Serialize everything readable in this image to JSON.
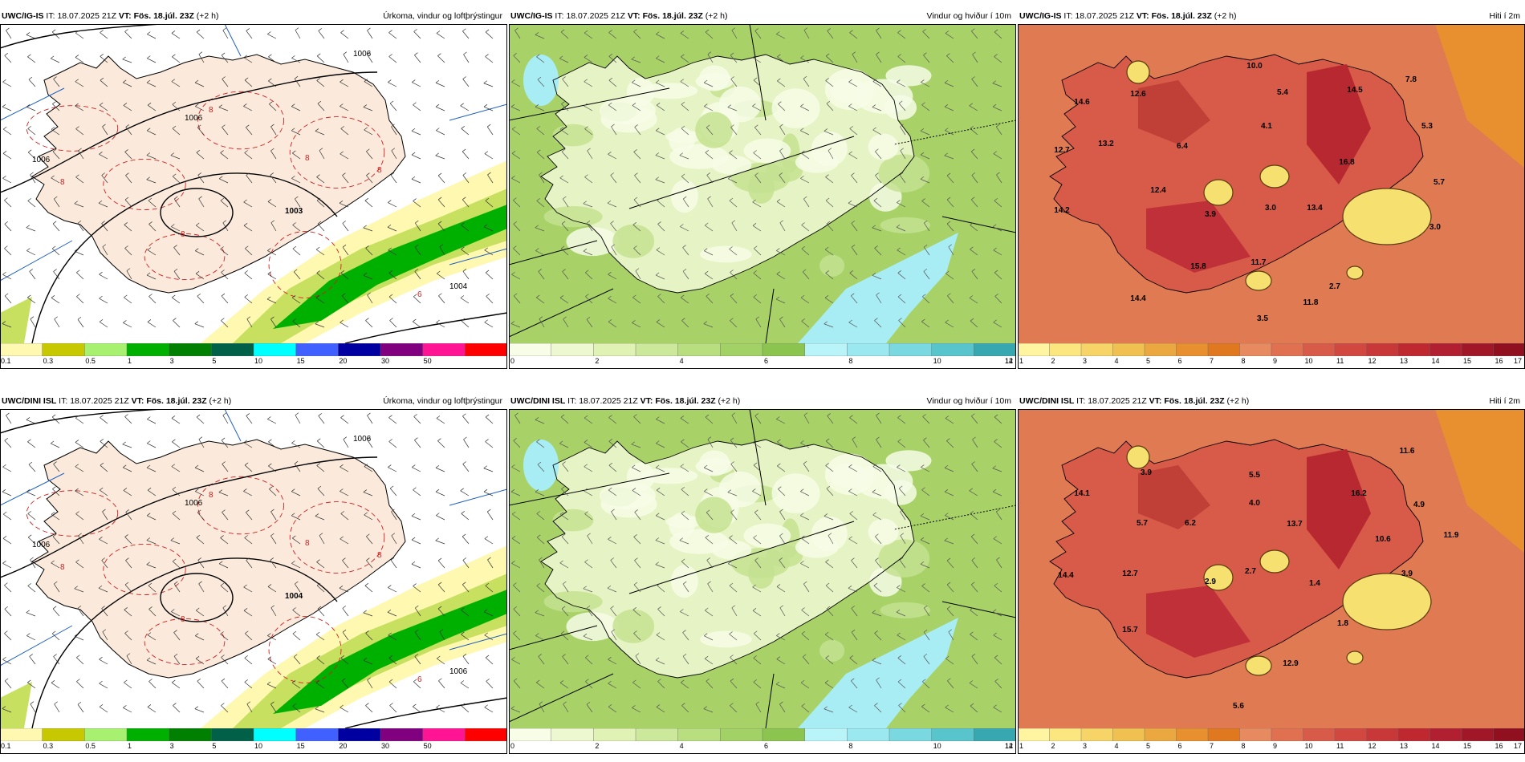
{
  "panels": [
    {
      "id": "p1",
      "header": {
        "model": "UWC/IG-IS",
        "it_label": "IT:",
        "it_value": "18.07.2025 21Z",
        "vt_label": "VT:",
        "vt_value": "Fös. 18.júl. 23Z",
        "offset": "(+2 h)",
        "title": "Úrkoma, vindur og loftþrýstingur"
      },
      "type": "precip",
      "colorbar": {
        "colors": [
          "#fff8b0",
          "#c8c800",
          "#a8f070",
          "#00b000",
          "#008000",
          "#006048",
          "#00ffff",
          "#4060ff",
          "#0000a0",
          "#800080",
          "#ff1493",
          "#ff0000"
        ],
        "ticks": [
          "0.1",
          "0.3",
          "0.5",
          "1",
          "3",
          "5",
          "10",
          "15",
          "20",
          "30",
          "50"
        ]
      },
      "isobars": [
        "1006",
        "1006",
        "1006",
        "1003",
        "1004"
      ],
      "temps_labels": [
        "8",
        "8",
        "8",
        "8",
        "8",
        "6"
      ]
    },
    {
      "id": "p2",
      "header": {
        "model": "UWC/IG-IS",
        "it_label": "IT:",
        "it_value": "18.07.2025 21Z",
        "vt_label": "VT:",
        "vt_value": "Fös. 18.júl. 23Z",
        "offset": "(+2 h)",
        "title": "Vindur og hviður í 10m"
      },
      "type": "wind",
      "colorbar": {
        "colors": [
          "#f8fde8",
          "#eef8d0",
          "#e0f2b4",
          "#cce89a",
          "#b8de80",
          "#a2d266",
          "#8cc450",
          "#b8f4f8",
          "#9ae8f0",
          "#7ad8e0",
          "#58c4cc",
          "#38a8b0"
        ],
        "ticks": [
          "0",
          "2",
          "4",
          "6",
          "8",
          "10",
          "12",
          "14"
        ]
      }
    },
    {
      "id": "p3",
      "header": {
        "model": "UWC/IG-IS",
        "it_label": "IT:",
        "it_value": "18.07.2025 21Z",
        "vt_label": "VT:",
        "vt_value": "Fös. 18.júl. 23Z",
        "offset": "(+2 h)",
        "title": "Hiti í 2m"
      },
      "type": "temp",
      "colorbar": {
        "colors": [
          "#fff4a0",
          "#fbe680",
          "#f6d468",
          "#f0c050",
          "#eca840",
          "#e89030",
          "#e07820",
          "#e88a60",
          "#e07050",
          "#d85a48",
          "#d04840",
          "#c83838",
          "#c02830",
          "#b02030",
          "#a01828",
          "#901020"
        ],
        "ticks": [
          "1",
          "2",
          "3",
          "4",
          "5",
          "6",
          "7",
          "8",
          "9",
          "10",
          "11",
          "12",
          "13",
          "14",
          "15",
          "16",
          "17"
        ]
      },
      "temps": [
        "10.0",
        "7.8",
        "14.6",
        "12.6",
        "5.4",
        "14.5",
        "4.1",
        "5.3",
        "12.7",
        "13.2",
        "6.4",
        "16.8",
        "5.7",
        "12.4",
        "14.2",
        "3.9",
        "3.0",
        "13.4",
        "3.0",
        "15.8",
        "11.7",
        "2.7",
        "14.4",
        "11.8",
        "3.5"
      ]
    },
    {
      "id": "p4",
      "header": {
        "model": "UWC/DINI ISL",
        "it_label": "IT:",
        "it_value": "18.07.2025 21Z",
        "vt_label": "VT:",
        "vt_value": "Fös. 18.júl. 23Z",
        "offset": "(+2 h)",
        "title": "Úrkoma, vindur og loftþrýstingur"
      },
      "type": "precip",
      "colorbar": {
        "colors": [
          "#fff8b0",
          "#c8c800",
          "#a8f070",
          "#00b000",
          "#008000",
          "#006048",
          "#00ffff",
          "#4060ff",
          "#0000a0",
          "#800080",
          "#ff1493",
          "#ff0000"
        ],
        "ticks": [
          "0.1",
          "0.3",
          "0.5",
          "1",
          "3",
          "5",
          "10",
          "15",
          "20",
          "30",
          "50"
        ]
      },
      "isobars": [
        "1006",
        "1006",
        "1006",
        "1004",
        "1006"
      ],
      "temps_labels": [
        "8",
        "8",
        "8",
        "8",
        "8",
        "6"
      ]
    },
    {
      "id": "p5",
      "header": {
        "model": "UWC/DINI ISL",
        "it_label": "IT:",
        "it_value": "18.07.2025 21Z",
        "vt_label": "VT:",
        "vt_value": "Fös. 18.júl. 23Z",
        "offset": "(+2 h)",
        "title": "Vindur og hviður í 10m"
      },
      "type": "wind",
      "colorbar": {
        "colors": [
          "#f8fde8",
          "#eef8d0",
          "#e0f2b4",
          "#cce89a",
          "#b8de80",
          "#a2d266",
          "#8cc450",
          "#b8f4f8",
          "#9ae8f0",
          "#7ad8e0",
          "#58c4cc",
          "#38a8b0"
        ],
        "ticks": [
          "0",
          "2",
          "4",
          "6",
          "8",
          "10",
          "12",
          "14"
        ]
      }
    },
    {
      "id": "p6",
      "header": {
        "model": "UWC/DINI ISL",
        "it_label": "IT:",
        "it_value": "18.07.2025 21Z",
        "vt_label": "VT:",
        "vt_value": "Fös. 18.júl. 23Z",
        "offset": "(+2 h)",
        "title": "Hiti í 2m"
      },
      "type": "temp",
      "colorbar": {
        "colors": [
          "#fff4a0",
          "#fbe680",
          "#f6d468",
          "#f0c050",
          "#eca840",
          "#e89030",
          "#e07820",
          "#e88a60",
          "#e07050",
          "#d85a48",
          "#d04840",
          "#c83838",
          "#c02830",
          "#b02030",
          "#a01828",
          "#901020"
        ],
        "ticks": [
          "1",
          "2",
          "3",
          "4",
          "5",
          "6",
          "7",
          "8",
          "9",
          "10",
          "11",
          "12",
          "13",
          "14",
          "15",
          "16",
          "17"
        ]
      },
      "temps": [
        "11.6",
        "3.9",
        "5.5",
        "14.1",
        "16.2",
        "4.0",
        "4.9",
        "5.7",
        "6.2",
        "13.7",
        "11.9",
        "10.6",
        "14.4",
        "12.7",
        "2.9",
        "2.7",
        "1.4",
        "3.9",
        "15.7",
        "1.8",
        "12.9",
        "5.6"
      ]
    }
  ]
}
